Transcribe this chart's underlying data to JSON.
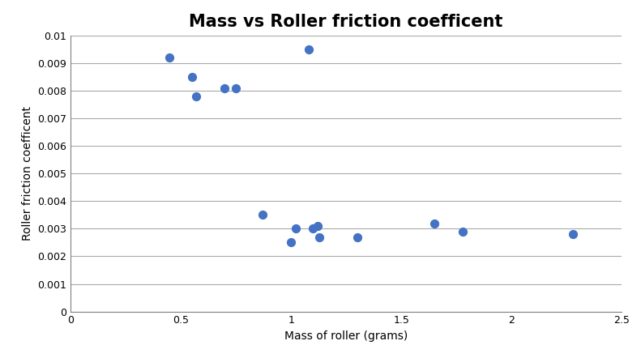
{
  "title": "Mass vs Roller friction coefficent",
  "xlabel": "Mass of roller (grams)",
  "ylabel": "Roller friction coefficent",
  "x": [
    0.45,
    0.55,
    0.57,
    0.7,
    0.75,
    0.87,
    1.0,
    1.02,
    1.08,
    1.1,
    1.12,
    1.13,
    1.3,
    1.65,
    1.78,
    2.28
  ],
  "y": [
    0.0092,
    0.0085,
    0.0078,
    0.0081,
    0.0081,
    0.0035,
    0.0025,
    0.003,
    0.0095,
    0.003,
    0.0031,
    0.0027,
    0.0027,
    0.0032,
    0.0029,
    0.0028
  ],
  "marker_color": "#4472C4",
  "marker_size": 50,
  "xlim": [
    0,
    2.5
  ],
  "ylim": [
    0,
    0.01
  ],
  "xticks": [
    0,
    0.5,
    1.0,
    1.5,
    2.0,
    2.5
  ],
  "ytick_vals": [
    0,
    0.001,
    0.002,
    0.003,
    0.004,
    0.005,
    0.006,
    0.007,
    0.008,
    0.009,
    0.01
  ],
  "ytick_labels": [
    "0",
    "0.001",
    "0.002",
    "0.003",
    "0.004",
    "0.005",
    "0.006",
    "0.007",
    "0.008",
    "0.009",
    "0.01"
  ],
  "background_color": "#ffffff",
  "plot_bg_color": "#ffffff",
  "grid_color": "#aaaaaa",
  "spine_color": "#808080",
  "title_fontsize": 15,
  "label_fontsize": 10,
  "tick_fontsize": 9
}
